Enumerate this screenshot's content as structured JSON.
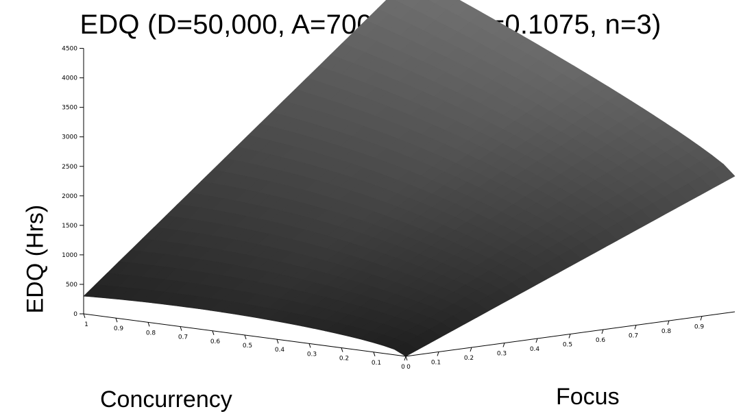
{
  "chart_data": {
    "type": "surface",
    "title": "EDQ (D=50,000, A=700, v=100, r=0.1075, n=3)",
    "xlabel": "Concurrency",
    "ylabel": "Focus",
    "zlabel": "EDQ (Hrs)",
    "x_ticks": [
      "1",
      "0.9",
      "0.8",
      "0.7",
      "0.6",
      "0.5",
      "0.4",
      "0.3",
      "0.2",
      "0.1",
      "0"
    ],
    "y_ticks": [
      "0",
      "0.1",
      "0.2",
      "0.3",
      "0.4",
      "0.5",
      "0.6",
      "0.7",
      "0.8",
      "0.9"
    ],
    "z_ticks": [
      "0",
      "500",
      "1000",
      "1500",
      "2000",
      "2500",
      "3000",
      "3500",
      "4000",
      "4500"
    ],
    "xlim": [
      0,
      1
    ],
    "ylim": [
      0,
      1
    ],
    "zlim": [
      0,
      4500
    ],
    "grid": false,
    "corner_values": {
      "concurrency_1_focus_0": 300,
      "concurrency_0_focus_0": 0,
      "concurrency_1_focus_1": 5000,
      "concurrency_0_focus_1": 2300
    },
    "colors": {
      "surface_dark": "#161616",
      "surface_light": "#8a8a8a",
      "axis": "#000000"
    }
  }
}
